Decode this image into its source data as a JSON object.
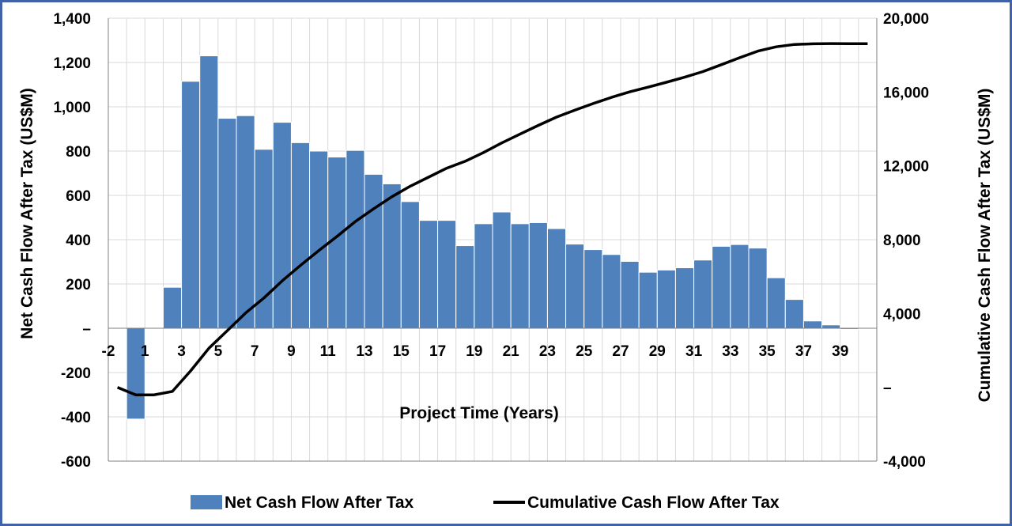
{
  "chart_data": {
    "type": "bar",
    "title": "",
    "xlabel": "Project Time (Years)",
    "ylabel": "Net Cash Flow After Tax (US$M)",
    "y2label": "Cumulative Cash Flow After Tax (US$M)",
    "x": [
      -2,
      -1,
      1,
      2,
      3,
      4,
      5,
      6,
      7,
      8,
      9,
      10,
      11,
      12,
      13,
      14,
      15,
      16,
      17,
      18,
      19,
      20,
      21,
      22,
      23,
      24,
      25,
      26,
      27,
      28,
      29,
      30,
      31,
      32,
      33,
      34,
      35,
      36,
      37,
      38,
      39,
      40
    ],
    "x_tick_labels": [
      "-2",
      "1",
      "3",
      "5",
      "7",
      "9",
      "11",
      "13",
      "15",
      "17",
      "19",
      "21",
      "23",
      "25",
      "27",
      "29",
      "31",
      "33",
      "35",
      "37",
      "39"
    ],
    "ylim": [
      -600,
      1400
    ],
    "y_ticks": [
      -600,
      -400,
      -200,
      0,
      200,
      400,
      600,
      800,
      1000,
      1200,
      1400
    ],
    "y_tick_labels": [
      "-600",
      "-400",
      "-200",
      "–",
      "200",
      "400",
      "600",
      "800",
      "1,000",
      "1,200",
      "1,400"
    ],
    "y2lim": [
      -4000,
      20000
    ],
    "y2_ticks": [
      -4000,
      0,
      4000,
      8000,
      12000,
      16000,
      20000
    ],
    "y2_tick_labels": [
      "-4,000",
      "–",
      "4,000",
      "8,000",
      "12,000",
      "16,000",
      "20,000"
    ],
    "grid": true,
    "legend_position": "bottom",
    "series": [
      {
        "name": "Net Cash Flow After Tax",
        "kind": "bar",
        "axis": "left",
        "color": "#4f81bd",
        "values": [
          0,
          -410,
          0,
          185,
          1115,
          1230,
          948,
          960,
          808,
          930,
          838,
          800,
          773,
          803,
          695,
          652,
          572,
          487,
          487,
          373,
          472,
          525,
          472,
          477,
          450,
          380,
          355,
          333,
          302,
          253,
          263,
          273,
          308,
          370,
          378,
          362,
          228,
          130,
          33,
          15,
          -5,
          0
        ]
      },
      {
        "name": "Cumulative Cash Flow After Tax",
        "kind": "line",
        "axis": "right",
        "color": "#000000",
        "values": [
          0,
          -410,
          -410,
          -225,
          890,
          2120,
          3068,
          4028,
          4836,
          5766,
          6604,
          7404,
          8177,
          8980,
          9675,
          10327,
          10899,
          11386,
          11873,
          12246,
          12718,
          13243,
          13715,
          14192,
          14642,
          15022,
          15377,
          15710,
          16012,
          16265,
          16528,
          16801,
          17109,
          17479,
          17857,
          18219,
          18447,
          18577,
          18610,
          18625,
          18620,
          18620
        ]
      }
    ]
  }
}
